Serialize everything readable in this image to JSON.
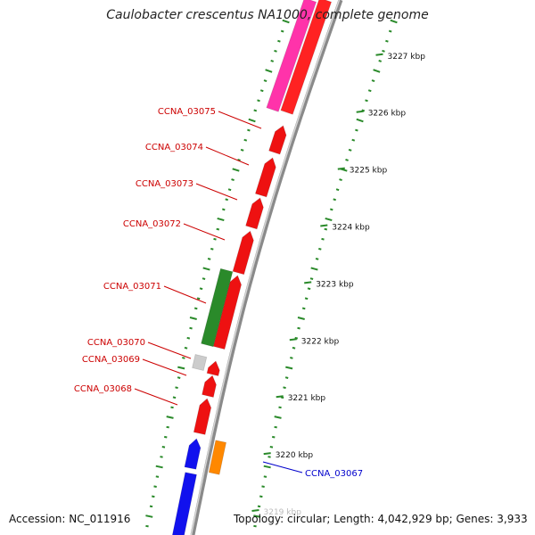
{
  "title": "Caulobacter crescentus NA1000, complete genome",
  "accession": "Accession: NC_011916",
  "topology": "Topology: circular; Length: 4,042,929 bp; Genes: 3,933",
  "colors": {
    "tick": "#2a8a2a",
    "label_red": "#cc0000",
    "label_blue": "#0000cc",
    "backbone": "#8a8a8a"
  },
  "scale_marks": [
    {
      "kbp": 3227,
      "label": "3227 kbp"
    },
    {
      "kbp": 3226,
      "label": "3226 kbp"
    },
    {
      "kbp": 3225,
      "label": "3225 kbp"
    },
    {
      "kbp": 3224,
      "label": "3224 kbp"
    },
    {
      "kbp": 3223,
      "label": "3223 kbp"
    },
    {
      "kbp": 3222,
      "label": "3222 kbp"
    },
    {
      "kbp": 3221,
      "label": "3221 kbp"
    },
    {
      "kbp": 3220,
      "label": "3220 kbp"
    },
    {
      "kbp": 3219,
      "label": "3219 kbp"
    }
  ],
  "gene_labels": [
    {
      "id": "CCNA_03075",
      "label": "CCNA_03075",
      "color": "#cc0000"
    },
    {
      "id": "CCNA_03074",
      "label": "CCNA_03074",
      "color": "#cc0000"
    },
    {
      "id": "CCNA_03073",
      "label": "CCNA_03073",
      "color": "#cc0000"
    },
    {
      "id": "CCNA_03072",
      "label": "CCNA_03072",
      "color": "#cc0000"
    },
    {
      "id": "CCNA_03071",
      "label": "CCNA_03071",
      "color": "#cc0000"
    },
    {
      "id": "CCNA_03070",
      "label": "CCNA_03070",
      "color": "#cc0000"
    },
    {
      "id": "CCNA_03069",
      "label": "CCNA_03069",
      "color": "#cc0000"
    },
    {
      "id": "CCNA_03068",
      "label": "CCNA_03068",
      "color": "#cc0000"
    },
    {
      "id": "CCNA_03067",
      "label": "CCNA_03067",
      "color": "#0000cc"
    }
  ]
}
